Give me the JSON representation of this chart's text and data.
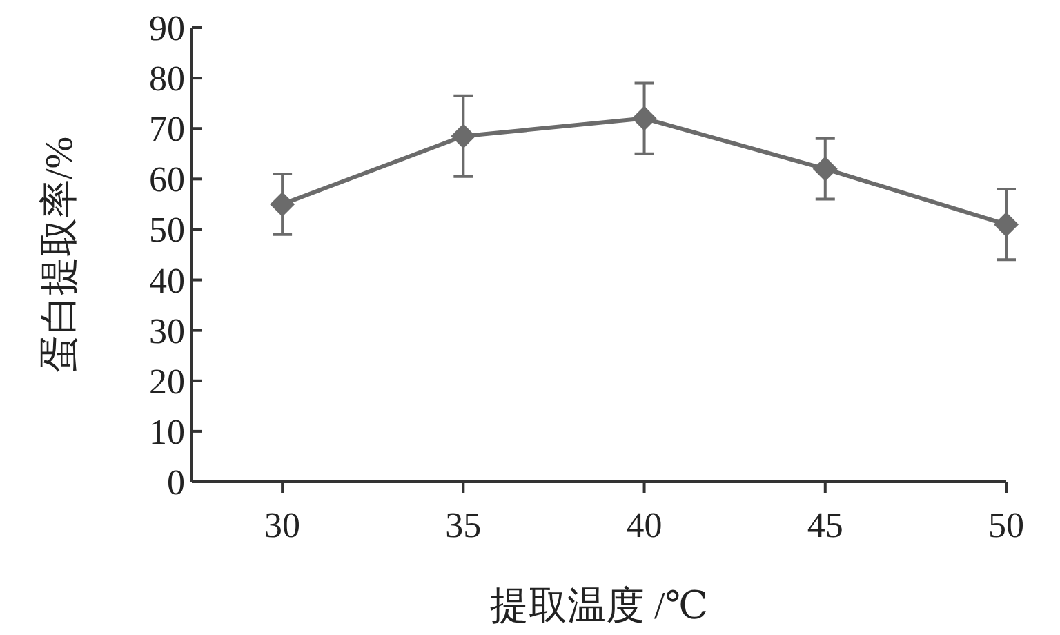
{
  "chart_data": {
    "type": "line",
    "xlabel": "提取温度 /℃",
    "ylabel": "蛋白提取率/%",
    "x": [
      30,
      35,
      40,
      45,
      50
    ],
    "series": [
      {
        "color": "#6b6b6b",
        "values": [
          55,
          68.5,
          72,
          62,
          51
        ],
        "errors": [
          6,
          8,
          7,
          6,
          7
        ]
      }
    ],
    "xlim": [
      27.5,
      50
    ],
    "xticks": [
      30,
      35,
      40,
      45,
      50
    ],
    "ylim": [
      0,
      90
    ],
    "yticks": [
      0,
      10,
      20,
      30,
      40,
      50,
      60,
      70,
      80,
      90
    ],
    "marker": "diamond",
    "line_style": "solid"
  }
}
